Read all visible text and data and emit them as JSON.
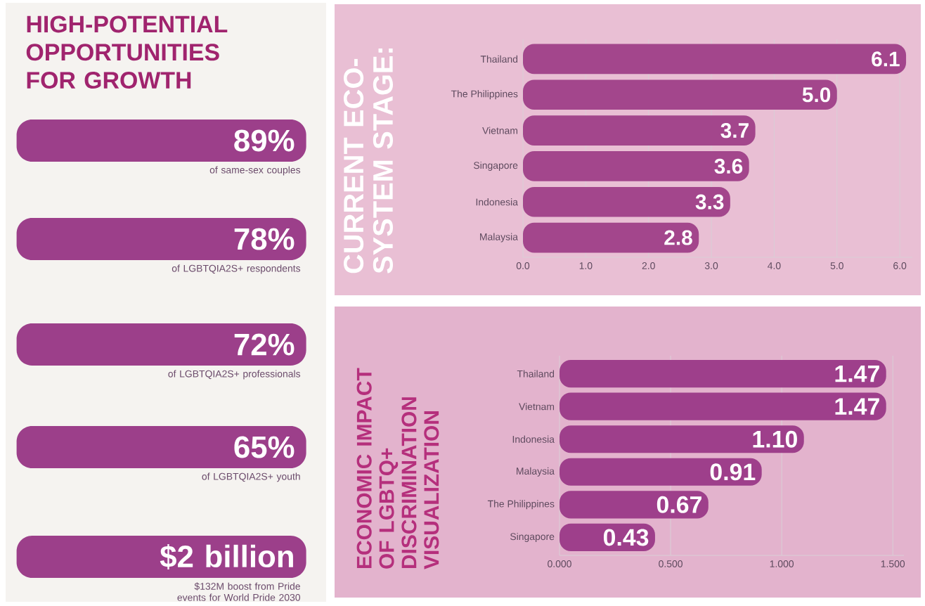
{
  "chart_data": [
    {
      "type": "other",
      "title": "HIGH-POTENTIAL OPPORTUNITIES FOR GROWTH",
      "annotations": [
        "89%",
        "of same-sex couples",
        "78%",
        "of LGBTQIA2S+ respondents",
        "72%",
        "of LGBTQIA2S+ professionals",
        "65%",
        "of LGBTQIA2S+ youth",
        "$2 billion",
        "$132M boost from Pride events for World Pride 2030"
      ]
    },
    {
      "type": "bar",
      "orientation": "horizontal",
      "title": "CURRENT ECO-SYSTEM STAGE:",
      "categories": [
        "Thailand",
        "The Philippines",
        "Vietnam",
        "Singapore",
        "Indonesia",
        "Malaysia"
      ],
      "values": [
        6.1,
        5.0,
        3.7,
        3.6,
        3.3,
        2.8
      ],
      "value_labels": [
        "6.1",
        "5.0",
        "3.7",
        "3.6",
        "3.3",
        "2.8"
      ],
      "color": "#a3468c",
      "xlim": [
        0,
        6.2
      ],
      "xticks": [
        {
          "value": 0,
          "label": "0.0"
        },
        {
          "value": 1,
          "label": "1.0"
        },
        {
          "value": 2,
          "label": "2.0"
        },
        {
          "value": 3,
          "label": "3.0"
        },
        {
          "value": 4,
          "label": "4.0"
        },
        {
          "value": 5,
          "label": "5.0"
        },
        {
          "value": 6,
          "label": "6.0"
        }
      ],
      "grid": "x"
    },
    {
      "type": "bar",
      "orientation": "horizontal",
      "title": "ECONOMIC IMPACT OF LGBTQ+ DISCRIMINATION VISUALIZATION",
      "categories": [
        "Thailand",
        "Vietnam",
        "Indonesia",
        "Malaysia",
        "The Philippines",
        "Singapore"
      ],
      "values": [
        1.47,
        1.47,
        1.1,
        0.91,
        0.67,
        0.43
      ],
      "value_labels": [
        "1.47",
        "1.47",
        "1.10",
        "0.91",
        "0.67",
        "0.43"
      ],
      "color": "#9e3f8b",
      "xlim": [
        0,
        1.55
      ],
      "xticks": [
        {
          "value": 0,
          "label": "0.000"
        },
        {
          "value": 0.5,
          "label": "0.500"
        },
        {
          "value": 1,
          "label": "1.000"
        },
        {
          "value": 1.5,
          "label": "1.500"
        }
      ],
      "grid": "x"
    }
  ]
}
